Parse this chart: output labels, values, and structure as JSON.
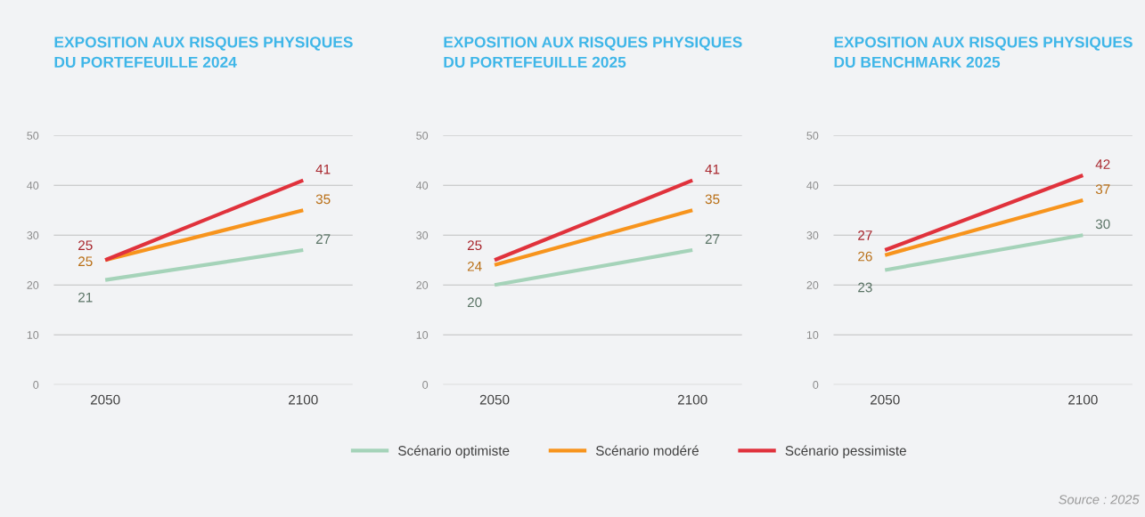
{
  "chart_data": [
    {
      "type": "line",
      "title": "EXPOSITION AUX RISQUES PHYSIQUES\nDU PORTEFEUILLE 2024",
      "categories": [
        "2050",
        "2100"
      ],
      "ylim": [
        0,
        50
      ],
      "yticks": [
        0,
        10,
        20,
        30,
        40,
        50
      ],
      "grid": "y",
      "data_labels": true,
      "legend": false,
      "marker": "none",
      "series": [
        {
          "color": "#a5d3b9",
          "values": [
            21,
            27
          ]
        },
        {
          "color": "#f7941d",
          "values": [
            25,
            35
          ]
        },
        {
          "color": "#e0323c",
          "values": [
            25,
            41
          ]
        }
      ]
    },
    {
      "type": "line",
      "title": "EXPOSITION AUX RISQUES PHYSIQUES\nDU PORTEFEUILLE 2025",
      "categories": [
        "2050",
        "2100"
      ],
      "ylim": [
        0,
        50
      ],
      "yticks": [
        0,
        10,
        20,
        30,
        40,
        50
      ],
      "grid": "y",
      "data_labels": true,
      "legend": "bottom",
      "marker": "none",
      "series": [
        {
          "name": "Scénario optimiste",
          "color": "#a5d3b9",
          "values": [
            20,
            27
          ]
        },
        {
          "name": "Scénario modéré",
          "color": "#f7941d",
          "values": [
            24,
            35
          ]
        },
        {
          "name": "Scénario pessimiste",
          "color": "#e0323c",
          "values": [
            25,
            41
          ]
        }
      ]
    },
    {
      "type": "line",
      "title": "EXPOSITION AUX RISQUES PHYSIQUES\nDU BENCHMARK 2025",
      "categories": [
        "2050",
        "2100"
      ],
      "ylim": [
        0,
        50
      ],
      "yticks": [
        0,
        10,
        20,
        30,
        40,
        50
      ],
      "grid": "y",
      "data_labels": true,
      "legend": false,
      "marker": "none",
      "annotations": [
        "Source : 2025"
      ],
      "series": [
        {
          "color": "#a5d3b9",
          "values": [
            23,
            30
          ]
        },
        {
          "color": "#f7941d",
          "values": [
            26,
            37
          ]
        },
        {
          "color": "#e0323c",
          "values": [
            27,
            42
          ]
        }
      ]
    }
  ]
}
